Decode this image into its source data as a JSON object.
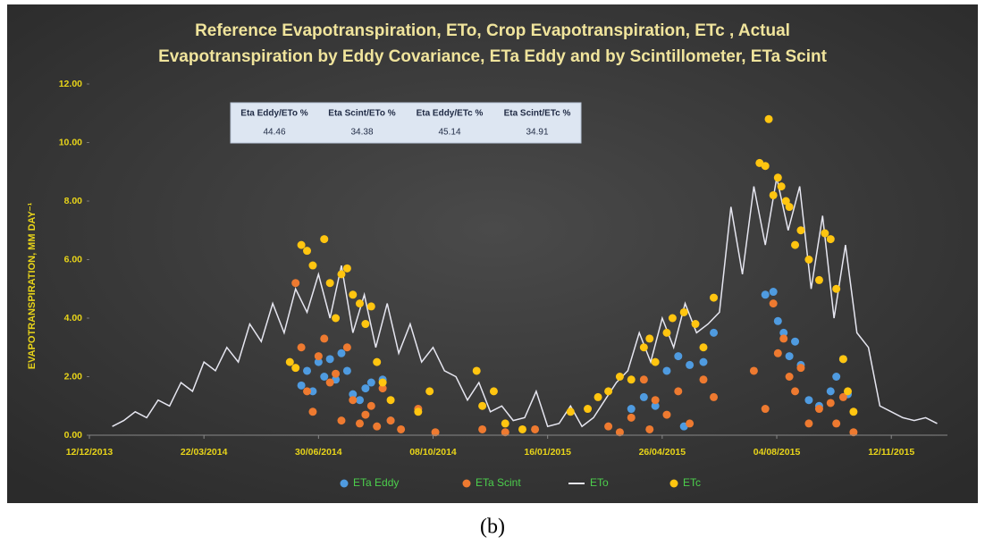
{
  "chart_data": {
    "type": "scatter",
    "title": [
      "Reference Evapotranspiration, ETo, Crop Evapotranspiration, ETc , Actual",
      "Evapotranspiration by Eddy Covariance, ETa Eddy and by Scintillometer, ETa Scint"
    ],
    "y_label": "EVAPOTRANSPIRATION, MM DAY⁻¹",
    "caption": "(b)",
    "xlim": [
      "12/12/2013",
      "31/12/2015"
    ],
    "xticks": [
      "12/12/2013",
      "22/03/2014",
      "30/06/2014",
      "08/10/2014",
      "16/01/2015",
      "26/04/2015",
      "04/08/2015",
      "12/11/2015"
    ],
    "ylim": [
      0,
      12
    ],
    "yticks": [
      {
        "value": 0,
        "label": "0.00"
      },
      {
        "value": 2,
        "label": "2.00"
      },
      {
        "value": 4,
        "label": "4.00"
      },
      {
        "value": 6,
        "label": "6.00"
      },
      {
        "value": 8,
        "label": "8.00"
      },
      {
        "value": 10,
        "label": "10.00"
      },
      {
        "value": 12,
        "label": "12.00"
      }
    ],
    "grid": false,
    "legend": "bottom",
    "summary_table": {
      "columns": [
        "Eta Eddy/ETo %",
        "Eta Scint/ETo %",
        "Eta Eddy/ETc %",
        "Eta Scint/ETc %"
      ],
      "values": [
        "44.46",
        "34.38",
        "45.14",
        "34.91"
      ]
    },
    "series": [
      {
        "name": "ETa Eddy",
        "type": "scatter",
        "color": "#4f9be0",
        "x": [
          "15/06/2014",
          "20/06/2014",
          "25/06/2014",
          "30/06/2014",
          "05/07/2014",
          "10/07/2014",
          "15/07/2014",
          "20/07/2014",
          "25/07/2014",
          "30/07/2014",
          "05/08/2014",
          "10/08/2014",
          "15/08/2014",
          "25/08/2014",
          "01/09/2014",
          "30/03/2015",
          "10/04/2015",
          "20/04/2015",
          "30/04/2015",
          "10/05/2015",
          "15/05/2015",
          "20/05/2015",
          "01/06/2015",
          "10/06/2015",
          "25/07/2015",
          "01/08/2015",
          "05/08/2015",
          "10/08/2015",
          "15/08/2015",
          "20/08/2015",
          "25/08/2015",
          "01/09/2015",
          "10/09/2015",
          "20/09/2015",
          "25/09/2015",
          "01/10/2015",
          "05/10/2015"
        ],
        "values": [
          1.7,
          2.2,
          1.5,
          2.5,
          2.0,
          2.6,
          1.9,
          2.8,
          2.2,
          1.4,
          1.2,
          1.6,
          1.8,
          1.9,
          0.5,
          0.9,
          1.3,
          1.0,
          2.2,
          2.7,
          0.3,
          2.4,
          2.5,
          3.5,
          4.8,
          4.9,
          3.9,
          3.5,
          2.7,
          3.2,
          2.4,
          1.2,
          1.0,
          1.5,
          2.0,
          2.6,
          1.4
        ]
      },
      {
        "name": "ETa Scint",
        "type": "scatter",
        "color": "#ee7a30",
        "x": [
          "10/06/2014",
          "15/06/2014",
          "20/06/2014",
          "25/06/2014",
          "30/06/2014",
          "05/07/2014",
          "10/07/2014",
          "15/07/2014",
          "20/07/2014",
          "25/07/2014",
          "30/07/2014",
          "05/08/2014",
          "10/08/2014",
          "15/08/2014",
          "20/08/2014",
          "25/08/2014",
          "01/09/2014",
          "10/09/2014",
          "25/09/2014",
          "10/10/2014",
          "20/11/2014",
          "10/12/2014",
          "05/01/2015",
          "10/03/2015",
          "20/03/2015",
          "30/03/2015",
          "10/04/2015",
          "15/04/2015",
          "20/04/2015",
          "30/04/2015",
          "10/05/2015",
          "20/05/2015",
          "01/06/2015",
          "10/06/2015",
          "15/07/2015",
          "25/07/2015",
          "01/08/2015",
          "05/08/2015",
          "10/08/2015",
          "15/08/2015",
          "20/08/2015",
          "25/08/2015",
          "01/09/2015",
          "10/09/2015",
          "20/09/2015",
          "25/09/2015",
          "01/10/2015",
          "10/10/2015"
        ],
        "values": [
          5.2,
          3.0,
          1.5,
          0.8,
          2.7,
          3.3,
          1.8,
          2.1,
          0.5,
          3.0,
          1.2,
          0.4,
          0.7,
          1.0,
          0.3,
          1.6,
          0.5,
          0.2,
          0.9,
          0.1,
          0.2,
          0.1,
          0.2,
          0.3,
          0.1,
          0.6,
          1.9,
          0.2,
          1.2,
          0.7,
          1.5,
          0.4,
          1.9,
          1.3,
          2.2,
          0.9,
          4.5,
          2.8,
          3.3,
          2.0,
          1.5,
          2.3,
          0.4,
          0.9,
          1.1,
          0.4,
          1.3,
          0.1
        ]
      },
      {
        "name": "ETo",
        "type": "line",
        "color": "#e6e6f0",
        "x": [
          "01/01/2014",
          "11/01/2014",
          "21/01/2014",
          "31/01/2014",
          "10/02/2014",
          "20/02/2014",
          "02/03/2014",
          "12/03/2014",
          "22/03/2014",
          "01/04/2014",
          "11/04/2014",
          "21/04/2014",
          "01/05/2014",
          "11/05/2014",
          "21/05/2014",
          "31/05/2014",
          "10/06/2014",
          "20/06/2014",
          "30/06/2014",
          "10/07/2014",
          "20/07/2014",
          "30/07/2014",
          "09/08/2014",
          "19/08/2014",
          "29/08/2014",
          "08/09/2014",
          "18/09/2014",
          "28/09/2014",
          "08/10/2014",
          "18/10/2014",
          "28/10/2014",
          "07/11/2014",
          "17/11/2014",
          "27/11/2014",
          "07/12/2014",
          "17/12/2014",
          "27/12/2014",
          "06/01/2015",
          "16/01/2015",
          "26/01/2015",
          "05/02/2015",
          "15/02/2015",
          "25/02/2015",
          "07/03/2015",
          "17/03/2015",
          "27/03/2015",
          "06/04/2015",
          "16/04/2015",
          "26/04/2015",
          "06/05/2015",
          "16/05/2015",
          "26/05/2015",
          "05/06/2015",
          "15/06/2015",
          "25/06/2015",
          "05/07/2015",
          "15/07/2015",
          "25/07/2015",
          "04/08/2015",
          "14/08/2015",
          "24/08/2015",
          "03/09/2015",
          "13/09/2015",
          "23/09/2015",
          "03/10/2015",
          "13/10/2015",
          "23/10/2015",
          "02/11/2015",
          "12/11/2015",
          "22/11/2015",
          "02/12/2015",
          "12/12/2015",
          "22/12/2015"
        ],
        "values": [
          0.3,
          0.5,
          0.8,
          0.6,
          1.2,
          1.0,
          1.8,
          1.5,
          2.5,
          2.2,
          3.0,
          2.5,
          3.8,
          3.2,
          4.5,
          3.5,
          5.0,
          4.2,
          5.5,
          4.0,
          5.8,
          3.5,
          4.8,
          3.0,
          4.5,
          2.8,
          3.8,
          2.5,
          3.0,
          2.2,
          2.0,
          1.2,
          1.8,
          0.8,
          1.0,
          0.5,
          0.6,
          1.5,
          0.3,
          0.4,
          1.0,
          0.3,
          0.6,
          1.2,
          1.8,
          2.2,
          3.5,
          2.5,
          4.0,
          3.0,
          4.5,
          3.5,
          3.8,
          4.2,
          7.8,
          5.5,
          8.5,
          6.5,
          8.8,
          7.0,
          8.5,
          5.0,
          7.5,
          4.0,
          6.5,
          3.5,
          3.0,
          1.0,
          0.8,
          0.6,
          0.5,
          0.6,
          0.4
        ]
      },
      {
        "name": "ETc",
        "type": "scatter",
        "color": "#ffc510",
        "x": [
          "05/06/2014",
          "10/06/2014",
          "15/06/2014",
          "20/06/2014",
          "25/06/2014",
          "05/07/2014",
          "10/07/2014",
          "15/07/2014",
          "20/07/2014",
          "25/07/2014",
          "30/07/2014",
          "05/08/2014",
          "10/08/2014",
          "15/08/2014",
          "20/08/2014",
          "25/08/2014",
          "01/09/2014",
          "25/09/2014",
          "05/10/2014",
          "15/11/2014",
          "20/11/2014",
          "30/11/2014",
          "10/12/2014",
          "25/12/2014",
          "05/02/2015",
          "20/02/2015",
          "01/03/2015",
          "10/03/2015",
          "20/03/2015",
          "30/03/2015",
          "10/04/2015",
          "15/04/2015",
          "20/04/2015",
          "30/04/2015",
          "05/05/2015",
          "15/05/2015",
          "25/05/2015",
          "01/06/2015",
          "10/06/2015",
          "20/07/2015",
          "25/07/2015",
          "28/07/2015",
          "01/08/2015",
          "05/08/2015",
          "08/08/2015",
          "12/08/2015",
          "15/08/2015",
          "20/08/2015",
          "25/08/2015",
          "01/09/2015",
          "10/09/2015",
          "15/09/2015",
          "20/09/2015",
          "25/09/2015",
          "01/10/2015",
          "05/10/2015",
          "10/10/2015"
        ],
        "values": [
          2.5,
          2.3,
          6.5,
          6.3,
          5.8,
          6.7,
          5.2,
          4.0,
          5.5,
          5.7,
          4.8,
          4.5,
          3.8,
          4.4,
          2.5,
          1.8,
          1.2,
          0.8,
          1.5,
          2.2,
          1.0,
          1.5,
          0.4,
          0.2,
          0.8,
          0.9,
          1.3,
          1.5,
          2.0,
          1.9,
          3.0,
          3.3,
          2.5,
          3.5,
          4.0,
          4.2,
          3.8,
          3.0,
          4.7,
          9.3,
          9.2,
          10.8,
          8.2,
          8.8,
          8.5,
          8.0,
          7.8,
          6.5,
          7.0,
          6.0,
          5.3,
          6.9,
          6.7,
          5.0,
          2.6,
          1.5,
          0.8
        ]
      }
    ]
  }
}
